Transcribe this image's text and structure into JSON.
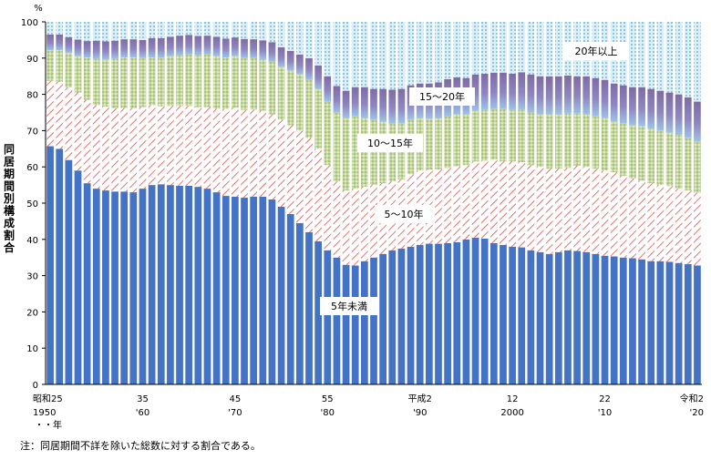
{
  "chart_data": {
    "type": "bar",
    "stacked": true,
    "unit_label": "%",
    "ylabel": "同居期間別構成割合",
    "ylim": [
      0,
      100
    ],
    "yticks": [
      0,
      10,
      20,
      30,
      40,
      50,
      60,
      70,
      80,
      90,
      100
    ],
    "categories": [
      "1950",
      "1951",
      "1952",
      "1953",
      "1954",
      "1955",
      "1956",
      "1957",
      "1958",
      "1959",
      "1960",
      "1961",
      "1962",
      "1963",
      "1964",
      "1965",
      "1966",
      "1967",
      "1968",
      "1969",
      "1970",
      "1971",
      "1972",
      "1973",
      "1974",
      "1975",
      "1976",
      "1977",
      "1978",
      "1979",
      "1980",
      "1981",
      "1982",
      "1983",
      "1984",
      "1985",
      "1986",
      "1987",
      "1988",
      "1989",
      "1990",
      "1991",
      "1992",
      "1993",
      "1994",
      "1995",
      "1996",
      "1997",
      "1998",
      "1999",
      "2000",
      "2001",
      "2002",
      "2003",
      "2004",
      "2005",
      "2006",
      "2007",
      "2008",
      "2009",
      "2010",
      "2011",
      "2012",
      "2013",
      "2014",
      "2015",
      "2016",
      "2017",
      "2018",
      "2019",
      "2020"
    ],
    "x_tick_labels": [
      {
        "index": 0,
        "line1": "昭和25",
        "line2": "1950"
      },
      {
        "index": 10,
        "line1": "35",
        "line2": "'60"
      },
      {
        "index": 20,
        "line1": "45",
        "line2": "'70"
      },
      {
        "index": 30,
        "line1": "55",
        "line2": "'80"
      },
      {
        "index": 40,
        "line1": "平成2",
        "line2": "'90"
      },
      {
        "index": 50,
        "line1": "12",
        "line2": "2000"
      },
      {
        "index": 60,
        "line1": "22",
        "line2": "'10"
      },
      {
        "index": 70,
        "line1": "令和2",
        "line2": "'20"
      }
    ],
    "x_unit_label": "・・年",
    "series": [
      {
        "name": "5年未満",
        "color": "#4472C4",
        "values": [
          65.7,
          65,
          61.9,
          59,
          55.5,
          54,
          53.5,
          53.2,
          53.2,
          53,
          54,
          55,
          55.2,
          55,
          54.8,
          54.8,
          54.5,
          54,
          53,
          52,
          51.8,
          51.5,
          51.8,
          51.8,
          51,
          49,
          47,
          44.5,
          42,
          39.5,
          37,
          35,
          33,
          32.8,
          34,
          35,
          36,
          37,
          37.5,
          38,
          38.5,
          38.8,
          38.8,
          39,
          39.2,
          40,
          40.5,
          40.2,
          39,
          38.5,
          38,
          37.8,
          37,
          36.5,
          36,
          36.5,
          37,
          36.8,
          36.5,
          36,
          35.5,
          35.3,
          35,
          34.8,
          34.5,
          34,
          34,
          33.8,
          33.5,
          33.2,
          32.8
        ]
      },
      {
        "name": "5～10年",
        "color": "#E06A6A",
        "values": [
          18,
          18.5,
          20,
          21.5,
          23,
          23,
          23.1,
          23,
          23,
          23.2,
          22.5,
          22,
          21.5,
          21.8,
          22,
          22,
          22,
          22.5,
          23,
          24,
          24.5,
          24.2,
          24,
          23.7,
          23.5,
          24,
          24.5,
          25.5,
          26,
          25.5,
          23.5,
          21,
          20.5,
          21.2,
          20.5,
          20,
          19.5,
          19,
          19,
          20,
          20.5,
          20.4,
          20.5,
          20.7,
          21,
          20.5,
          21,
          21.5,
          23,
          23,
          23.5,
          23.5,
          23.5,
          23.5,
          23.5,
          23,
          22.7,
          23.5,
          23.5,
          23.5,
          23.5,
          23.2,
          22.5,
          22,
          21.7,
          21.5,
          21,
          20.9,
          20.5,
          20.3,
          20
        ]
      },
      {
        "name": "10～15年",
        "color": "#C3D69B",
        "values": [
          8.5,
          8.7,
          9.5,
          10,
          11.7,
          12.8,
          13,
          13.6,
          14,
          14,
          13.5,
          13.2,
          13.4,
          13.7,
          14,
          14.2,
          14.3,
          14.5,
          14.6,
          14.2,
          14.3,
          14.3,
          14.2,
          14.2,
          14.5,
          14.5,
          15,
          15.5,
          16,
          16.5,
          17.5,
          19,
          20,
          20,
          19,
          18,
          17,
          16,
          15.5,
          15,
          14.5,
          14,
          14,
          14.2,
          14.2,
          14,
          14,
          14,
          14,
          14.5,
          14.2,
          14.5,
          14.5,
          14.5,
          15,
          15,
          15,
          14.4,
          14.5,
          14.5,
          14.5,
          14,
          14.5,
          14.7,
          15,
          15,
          15,
          14.8,
          14.8,
          14.5,
          14.2
        ]
      },
      {
        "name": "15～20年",
        "color": "#8064A2",
        "values": [
          4.3,
          4.3,
          4.4,
          4.6,
          4.5,
          5,
          5,
          5,
          5,
          5,
          5,
          5.3,
          5.4,
          5.4,
          5.4,
          5.4,
          5.3,
          5.2,
          5.3,
          5.2,
          5.1,
          5.3,
          5.2,
          5.2,
          5.4,
          5.5,
          5.5,
          5.5,
          6,
          6.5,
          7,
          7.3,
          7.5,
          8,
          8.5,
          8.5,
          9,
          9.3,
          9.5,
          9.5,
          9.5,
          9.8,
          10,
          10.3,
          10.3,
          10,
          10,
          10,
          10,
          10,
          10,
          10.3,
          10.5,
          10.5,
          10.5,
          10.5,
          10.5,
          10.3,
          10.5,
          10.5,
          10.5,
          10.5,
          10.5,
          10.5,
          10.8,
          11,
          11,
          11,
          11.2,
          11.2,
          11
        ]
      },
      {
        "name": "20年以上",
        "color": "#B7DEE8",
        "values": [
          3.5,
          3.5,
          4.2,
          4.9,
          5.3,
          5.2,
          5.4,
          5.2,
          4.8,
          4.8,
          5,
          4.5,
          4.5,
          4.1,
          3.8,
          3.6,
          3.9,
          3.8,
          4.1,
          4.6,
          4.3,
          4.7,
          4.8,
          5.1,
          5.6,
          7,
          8,
          9,
          10,
          12,
          15,
          17.7,
          19,
          18,
          18,
          18.5,
          18.5,
          18.7,
          18.5,
          17.5,
          17,
          17,
          16.7,
          15.8,
          15.3,
          15.5,
          14.5,
          14.3,
          14,
          14,
          14.3,
          13.9,
          14.5,
          15,
          15,
          15,
          14.8,
          15,
          15,
          15.5,
          16,
          17,
          17.5,
          18,
          18,
          18.5,
          19,
          19.5,
          20,
          20.8,
          22
        ]
      }
    ],
    "annotations": [
      {
        "series": "20年以上",
        "text": "20年以上"
      },
      {
        "series": "15～20年",
        "text": "15～20年"
      },
      {
        "series": "10～15年",
        "text": "10～15年"
      },
      {
        "series": "5～10年",
        "text": "5～10年"
      },
      {
        "series": "5年未満",
        "text": "5年未満"
      }
    ]
  },
  "note": "注：同居期間不詳を除いた総数に対する割合である。"
}
